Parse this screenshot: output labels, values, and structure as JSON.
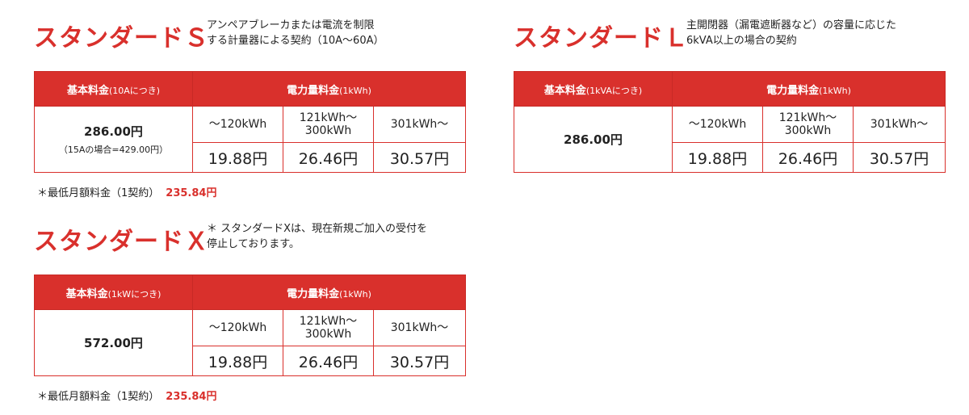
{
  "plans": [
    {
      "title": "スタンダードＳ",
      "desc": [
        "アンペアブレーカまたは電流を制限",
        "する計量器による契約（10A～60A）"
      ],
      "basic_header": "基本料金",
      "basic_unit": "(10Aにつき)",
      "usage_header": "電力量料金",
      "usage_unit": "(1kWh)",
      "basic_value": "286.00円",
      "basic_note": "（15Aの場合=429.00円）",
      "tiers": [
        "～120kWh",
        "121kWh～\n300kWh",
        "301kWh～"
      ],
      "prices": [
        "19.88円",
        "26.46円",
        "30.57円"
      ],
      "min_fee_label": "＊最低月額料金（1契約）",
      "min_fee_value": "235.84円"
    },
    {
      "title": "スタンダードＬ",
      "desc": [
        "主開閉器（漏電遮断器など）の容量に応じた",
        "6kVA以上の場合の契約"
      ],
      "basic_header": "基本料金",
      "basic_unit": "(1kVAにつき)",
      "usage_header": "電力量料金",
      "usage_unit": "(1kWh)",
      "basic_value": "286.00円",
      "tiers": [
        "～120kWh",
        "121kWh～\n300kWh",
        "301kWh～"
      ],
      "prices": [
        "19.88円",
        "26.46円",
        "30.57円"
      ]
    },
    {
      "title": "スタンダードＸ",
      "desc": [
        "＊ スタンダードXは、現在新規ご加入の受付を",
        "停止しております。"
      ],
      "basic_header": "基本料金",
      "basic_unit": "(1kWにつき)",
      "usage_header": "電力量料金",
      "usage_unit": "(1kWh)",
      "basic_value": "572.00円",
      "tiers": [
        "～120kWh",
        "121kWh～\n300kWh",
        "301kWh～"
      ],
      "prices": [
        "19.88円",
        "26.46円",
        "30.57円"
      ],
      "min_fee_label": "＊最低月額料金（1契約）",
      "min_fee_value": "235.84円"
    }
  ],
  "colors": {
    "accent": "#d9302c"
  }
}
